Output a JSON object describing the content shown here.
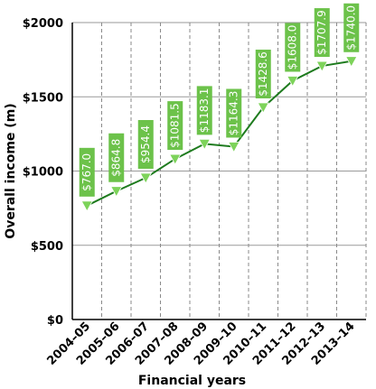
{
  "chart_data": {
    "type": "line",
    "categories": [
      "2004–05",
      "2005–06",
      "2006–07",
      "2007–08",
      "2008–09",
      "2009–10",
      "2010–11",
      "2011–12",
      "2012–13",
      "2013–14"
    ],
    "series": [
      {
        "values": [
          767.0,
          864.8,
          954.4,
          1081.5,
          1183.1,
          1164.3,
          1428.6,
          1608.0,
          1707.9,
          1740.0
        ]
      }
    ],
    "data_labels": [
      "$767.0",
      "$864.8",
      "$954.4",
      "$1081.5",
      "$1183.1",
      "$1164.3",
      "$1428.6",
      "$1608.0",
      "$1707.9",
      "$1740.0"
    ],
    "xlabel": "Financial years",
    "ylabel": "Overall income (m)",
    "ylim": [
      0,
      2000
    ],
    "yticks": [
      0,
      500,
      1000,
      1500,
      2000
    ],
    "ytick_labels": [
      "$0",
      "$500",
      "$1000",
      "$1500",
      "$2000"
    ],
    "grid": "vertical dashed lines between categories, horizontal solid lines at ticks",
    "colors": {
      "line": "#1e7b1e",
      "marker": "#7dd35a",
      "label_box": "#6cc24a",
      "grid_h": "#9a9a9a",
      "grid_v": "#8a8a8a",
      "axis": "#000000"
    }
  }
}
